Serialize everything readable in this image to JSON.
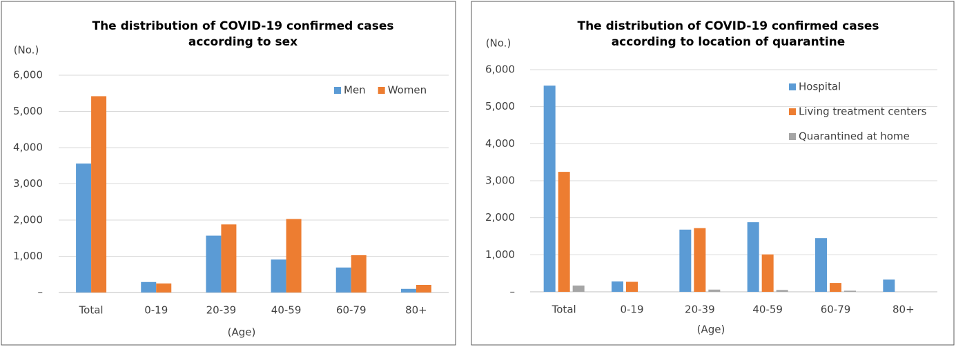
{
  "chart_data": [
    {
      "type": "bar",
      "title": [
        "The distribution of COVID-19 confirmed cases",
        "according to sex"
      ],
      "y_label": "(No.)",
      "x_label": "(Age)",
      "categories": [
        "Total",
        "0-19",
        "20-39",
        "40-59",
        "60-79",
        "80+"
      ],
      "series": [
        {
          "name": "Men",
          "color": "#5b9bd5",
          "values": [
            3560,
            290,
            1570,
            910,
            690,
            100
          ]
        },
        {
          "name": "Women",
          "color": "#ed7d31",
          "values": [
            5420,
            250,
            1880,
            2030,
            1030,
            210
          ]
        }
      ],
      "ylim": [
        0,
        6000
      ],
      "yticks": [
        {
          "value": 0,
          "label": "–"
        },
        {
          "value": 1000,
          "label": "1,000"
        },
        {
          "value": 2000,
          "label": "2,000"
        },
        {
          "value": 3000,
          "label": "3,000"
        },
        {
          "value": 4000,
          "label": "4,000"
        },
        {
          "value": 5000,
          "label": "5,000"
        },
        {
          "value": 6000,
          "label": "6,000"
        }
      ],
      "grid": true,
      "legend": "upper right",
      "legend_orientation": "horizontal"
    },
    {
      "type": "bar",
      "title": [
        "The distribution of COVID-19 confirmed cases",
        "according to location of quarantine"
      ],
      "y_label": "(No.)",
      "x_label": "(Age)",
      "categories": [
        "Total",
        "0-19",
        "20-39",
        "40-59",
        "60-79",
        "80+"
      ],
      "series": [
        {
          "name": "Hospital",
          "color": "#5b9bd5",
          "values": [
            5570,
            280,
            1680,
            1880,
            1450,
            330
          ]
        },
        {
          "name": "Living treatment centers",
          "color": "#ed7d31",
          "values": [
            3240,
            270,
            1720,
            1010,
            240,
            0
          ]
        },
        {
          "name": "Quarantined at home",
          "color": "#a5a5a5",
          "values": [
            170,
            0,
            60,
            50,
            30,
            0
          ]
        }
      ],
      "ylim": [
        0,
        6000
      ],
      "yticks": [
        {
          "value": 0,
          "label": "–"
        },
        {
          "value": 1000,
          "label": "1,000"
        },
        {
          "value": 2000,
          "label": "2,000"
        },
        {
          "value": 3000,
          "label": "3,000"
        },
        {
          "value": 4000,
          "label": "4,000"
        },
        {
          "value": 5000,
          "label": "5,000"
        },
        {
          "value": 6000,
          "label": "6,000"
        }
      ],
      "grid": true,
      "legend": "upper right",
      "legend_orientation": "vertical"
    }
  ]
}
